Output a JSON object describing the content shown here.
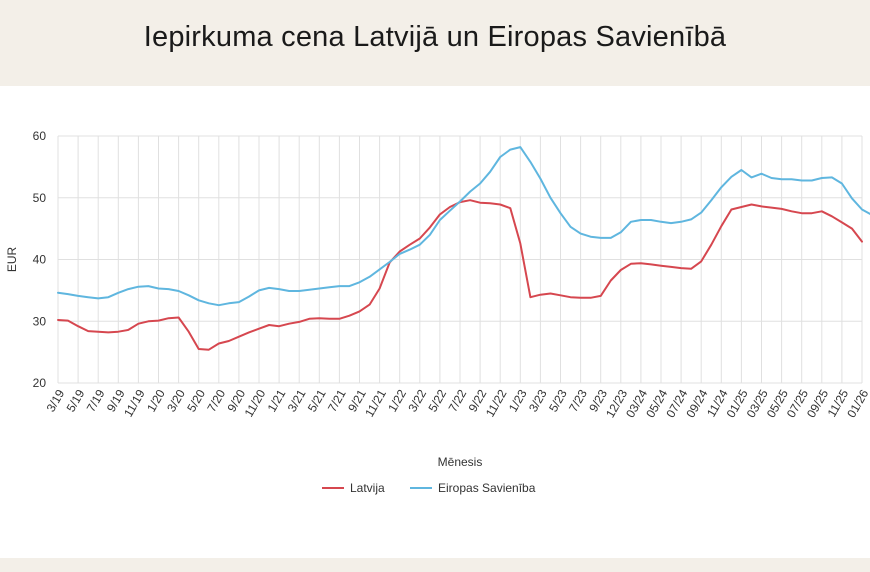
{
  "title": "Iepirkuma cena Latvijā un Eiropas Savienībā",
  "colors": {
    "latvija": "#d6474f",
    "es": "#5fb6df",
    "grid": "#e0e0e0"
  },
  "chart_data": {
    "type": "line",
    "title": "Iepirkuma cena Latvijā un Eiropas Savienībā",
    "xlabel": "Mēnesis",
    "ylabel": "EUR",
    "ylim": [
      20,
      60
    ],
    "yticks": [
      20,
      30,
      40,
      50,
      60
    ],
    "grid": true,
    "legend": "bottom",
    "x_tick_labels": [
      "3/19",
      "5/19",
      "7/19",
      "9/19",
      "11/19",
      "1/20",
      "3/20",
      "5/20",
      "7/20",
      "9/20",
      "11/20",
      "1/21",
      "3/21",
      "5/21",
      "7/21",
      "9/21",
      "11/21",
      "1/22",
      "3/22",
      "5/22",
      "7/22",
      "9/22",
      "11/22",
      "1/23",
      "3/23",
      "5/23",
      "7/23",
      "9/23",
      "12/23",
      "03/24",
      "05/24",
      "07/24",
      "09/24",
      "11/24",
      "01/25",
      "03/25",
      "05/25",
      "07/25",
      "09/25",
      "11/25",
      "01/26"
    ],
    "series": [
      {
        "name": "Latvija",
        "color": "#d6474f",
        "values": [
          30.2,
          30.1,
          29.2,
          28.4,
          28.3,
          28.2,
          28.3,
          28.6,
          29.6,
          30.0,
          30.1,
          30.5,
          30.6,
          28.3,
          25.5,
          25.4,
          26.4,
          26.8,
          27.5,
          28.2,
          28.8,
          29.4,
          29.2,
          29.6,
          29.9,
          30.4,
          30.5,
          30.4,
          30.4,
          30.9,
          31.6,
          32.7,
          35.3,
          39.5,
          41.3,
          42.4,
          43.4,
          45.2,
          47.3,
          48.5,
          49.3,
          49.6,
          49.2,
          49.1,
          48.9,
          48.3,
          42.6,
          33.9,
          34.3,
          34.5,
          34.2,
          33.9,
          33.8,
          33.8,
          34.1,
          36.6,
          38.3,
          39.3,
          39.4,
          39.2,
          39.0,
          38.8,
          38.6,
          38.5,
          39.7,
          42.4,
          45.4,
          48.1,
          48.5,
          48.9,
          48.6,
          48.4,
          48.2,
          47.8,
          47.5,
          47.5,
          47.8,
          47.0,
          46.0,
          45.0,
          42.9
        ]
      },
      {
        "name": "Eiropas Savienība",
        "color": "#5fb6df",
        "values": [
          34.6,
          34.4,
          34.1,
          33.9,
          33.7,
          33.9,
          34.6,
          35.2,
          35.6,
          35.7,
          35.3,
          35.2,
          34.9,
          34.2,
          33.4,
          32.9,
          32.6,
          32.9,
          33.1,
          34.0,
          35.0,
          35.4,
          35.2,
          34.9,
          34.9,
          35.1,
          35.3,
          35.5,
          35.7,
          35.7,
          36.3,
          37.2,
          38.4,
          39.6,
          40.9,
          41.6,
          42.4,
          44.0,
          46.4,
          47.9,
          49.4,
          51.0,
          52.3,
          54.2,
          56.6,
          57.8,
          58.2,
          55.8,
          53.1,
          50.0,
          47.5,
          45.3,
          44.2,
          43.7,
          43.5,
          43.5,
          44.4,
          46.1,
          46.4,
          46.4,
          46.1,
          45.9,
          46.1,
          46.5,
          47.6,
          49.6,
          51.7,
          53.4,
          54.5,
          53.3,
          53.9,
          53.2,
          53.0,
          53.0,
          52.8,
          52.8,
          53.2,
          53.3,
          52.3,
          49.9,
          48.1,
          47.2
        ]
      }
    ]
  }
}
